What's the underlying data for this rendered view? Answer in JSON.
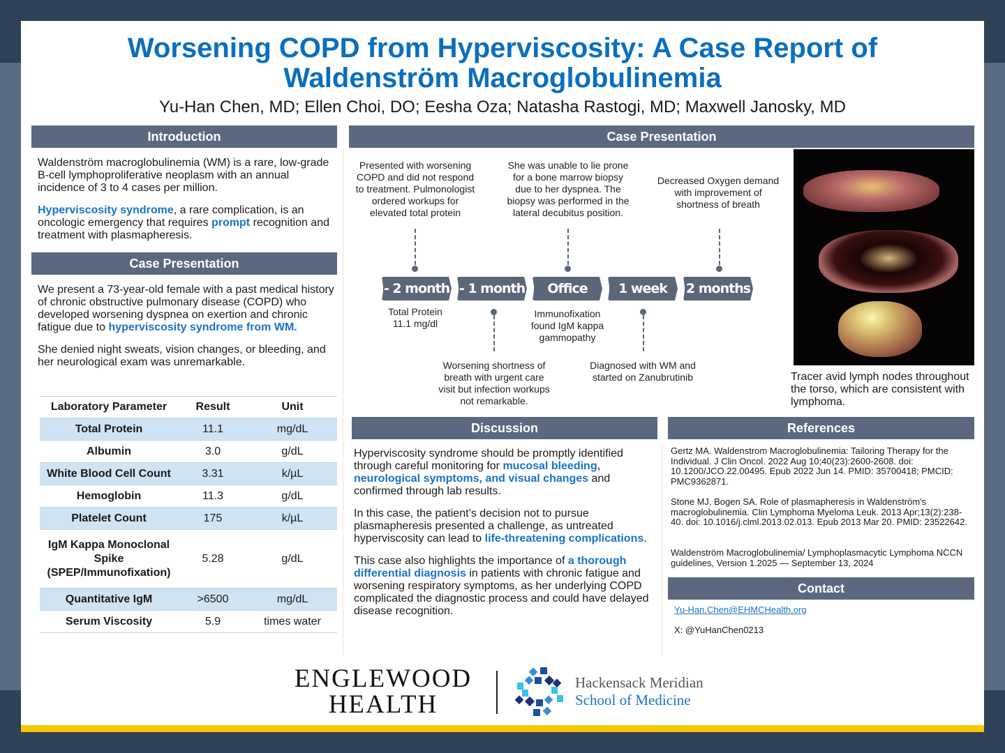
{
  "title": {
    "line1": "Worsening COPD from Hyperviscosity: A Case Report of",
    "line2": "Waldenström Macroglobulinemia"
  },
  "authors": "Yu-Han Chen, MD; Ellen Choi, DO; Eesha Oza; Natasha Rastogi, MD; Maxwell Janosky, MD",
  "introduction": {
    "header": "Introduction",
    "p1": "Waldenström macroglobulinemia (WM) is a rare, low-grade B-cell lymphoproliferative neoplasm with an annual incidence of 3 to 4 cases per million.",
    "p2": [
      "Hyperviscosity syndrome",
      ", a rare complication, is an oncologic emergency that requires ",
      "prompt",
      " recognition and treatment with plasmapheresis."
    ]
  },
  "case_left": {
    "header": "Case Presentation",
    "p1": [
      "We present a 73-year-old female with a past medical history of chronic obstructive pulmonary disease (COPD) who developed worsening dyspnea on exertion and chronic fatigue due to ",
      "hyperviscosity syndrome from WM."
    ],
    "p2": "She denied night sweats, vision changes, or bleeding, and her neurological exam was unremarkable."
  },
  "lab_table": {
    "headers": [
      "Laboratory Parameter",
      "Result",
      "Unit"
    ],
    "rows": [
      [
        "Total Protein",
        "11.1",
        "mg/dL"
      ],
      [
        "Albumin",
        "3.0",
        "g/dL"
      ],
      [
        "White Blood Cell Count",
        "3.31",
        "k/µL"
      ],
      [
        "Hemoglobin",
        "11.3",
        "g/dL"
      ],
      [
        "Platelet Count",
        "175",
        "k/µL"
      ],
      [
        "IgM Kappa Monoclonal Spike (SPEP/Immunofixation)",
        "5.28",
        "g/dL"
      ],
      [
        "Quantitative IgM",
        ">6500",
        "mg/dL"
      ],
      [
        "Serum Viscosity",
        "5.9",
        "times water"
      ]
    ]
  },
  "case_right": {
    "header": "Case Presentation",
    "timeline": {
      "labels": [
        "- 2 month",
        "- 1 month",
        "Office",
        "1 week",
        "2 months"
      ],
      "above": [
        "Presented with worsening COPD and did not respond to treatment. Pulmonologist ordered workups for elevated total protein",
        "She was unable to lie prone for a bone marrow biopsy due to her dyspnea. The biopsy was performed in the lateral decubitus position.",
        "Decreased Oxygen demand with improvement of shortness of breath"
      ],
      "below": [
        "Total Protein 11.1 mg/dl",
        "Immunofixation found IgM kappa gammopathy"
      ],
      "below_far": [
        "Worsening shortness of breath with urgent care visit but infection workups not remarkable.",
        "Diagnosed with WM and started on Zanubrutinib"
      ]
    },
    "image_caption": "Tracer avid lymph nodes throughout the torso, which are consistent with lymphoma."
  },
  "discussion": {
    "header": "Discussion",
    "p1": [
      "Hyperviscosity syndrome should be promptly identified through careful monitoring for ",
      "mucosal bleeding, neurological symptoms, and visual changes",
      " and confirmed through lab results."
    ],
    "p2": [
      "In this case, the patient’s decision not to pursue plasmapheresis presented a challenge, as untreated hyperviscosity can lead to ",
      "life-threatening complications",
      "."
    ],
    "p3": [
      "This case also highlights the importance of ",
      "a thorough differential diagnosis",
      " in patients with chronic fatigue and worsening respiratory symptoms, as her underlying COPD complicated the diagnostic process and could have delayed disease recognition."
    ]
  },
  "references": {
    "header": "References",
    "items": [
      "Gertz MA. Waldenstrom Macroglobulinemia: Tailoring Therapy for the Individual. J Clin Oncol. 2022 Aug 10;40(23):2600-2608. doi: 10.1200/JCO.22.00495. Epub 2022 Jun 14. PMID: 35700418; PMCID: PMC9362871.",
      "Stone MJ, Bogen SA. Role of plasmapheresis in Waldenström's macroglobulinemia. Clin Lymphoma Myeloma Leuk. 2013 Apr;13(2):238-40. doi: 10.1016/j.clml.2013.02.013. Epub 2013 Mar 20. PMID: 23522642.",
      "Waldenström Macroglobulinemia/ Lymphoplasmacytic Lymphoma NCCN guidelines, Version 1.2025 — September 13, 2024"
    ]
  },
  "contact": {
    "header": "Contact",
    "email": "Yu-Han.Chen@EHMCHealth.org",
    "x_handle": "X: @YuHanChen0213"
  },
  "logos": {
    "englewood_line1": "ENGLEWOOD",
    "englewood_line2": "HEALTH",
    "hms_line1": "Hackensack Meridian",
    "hms_line2": "School of Medicine"
  },
  "colors": {
    "title": "#0b6fbe",
    "highlight": "#1a73c8",
    "header_bar": "#5b6880",
    "table_stripe": "#cfe3f3",
    "accent_strip": "#f5c800"
  }
}
